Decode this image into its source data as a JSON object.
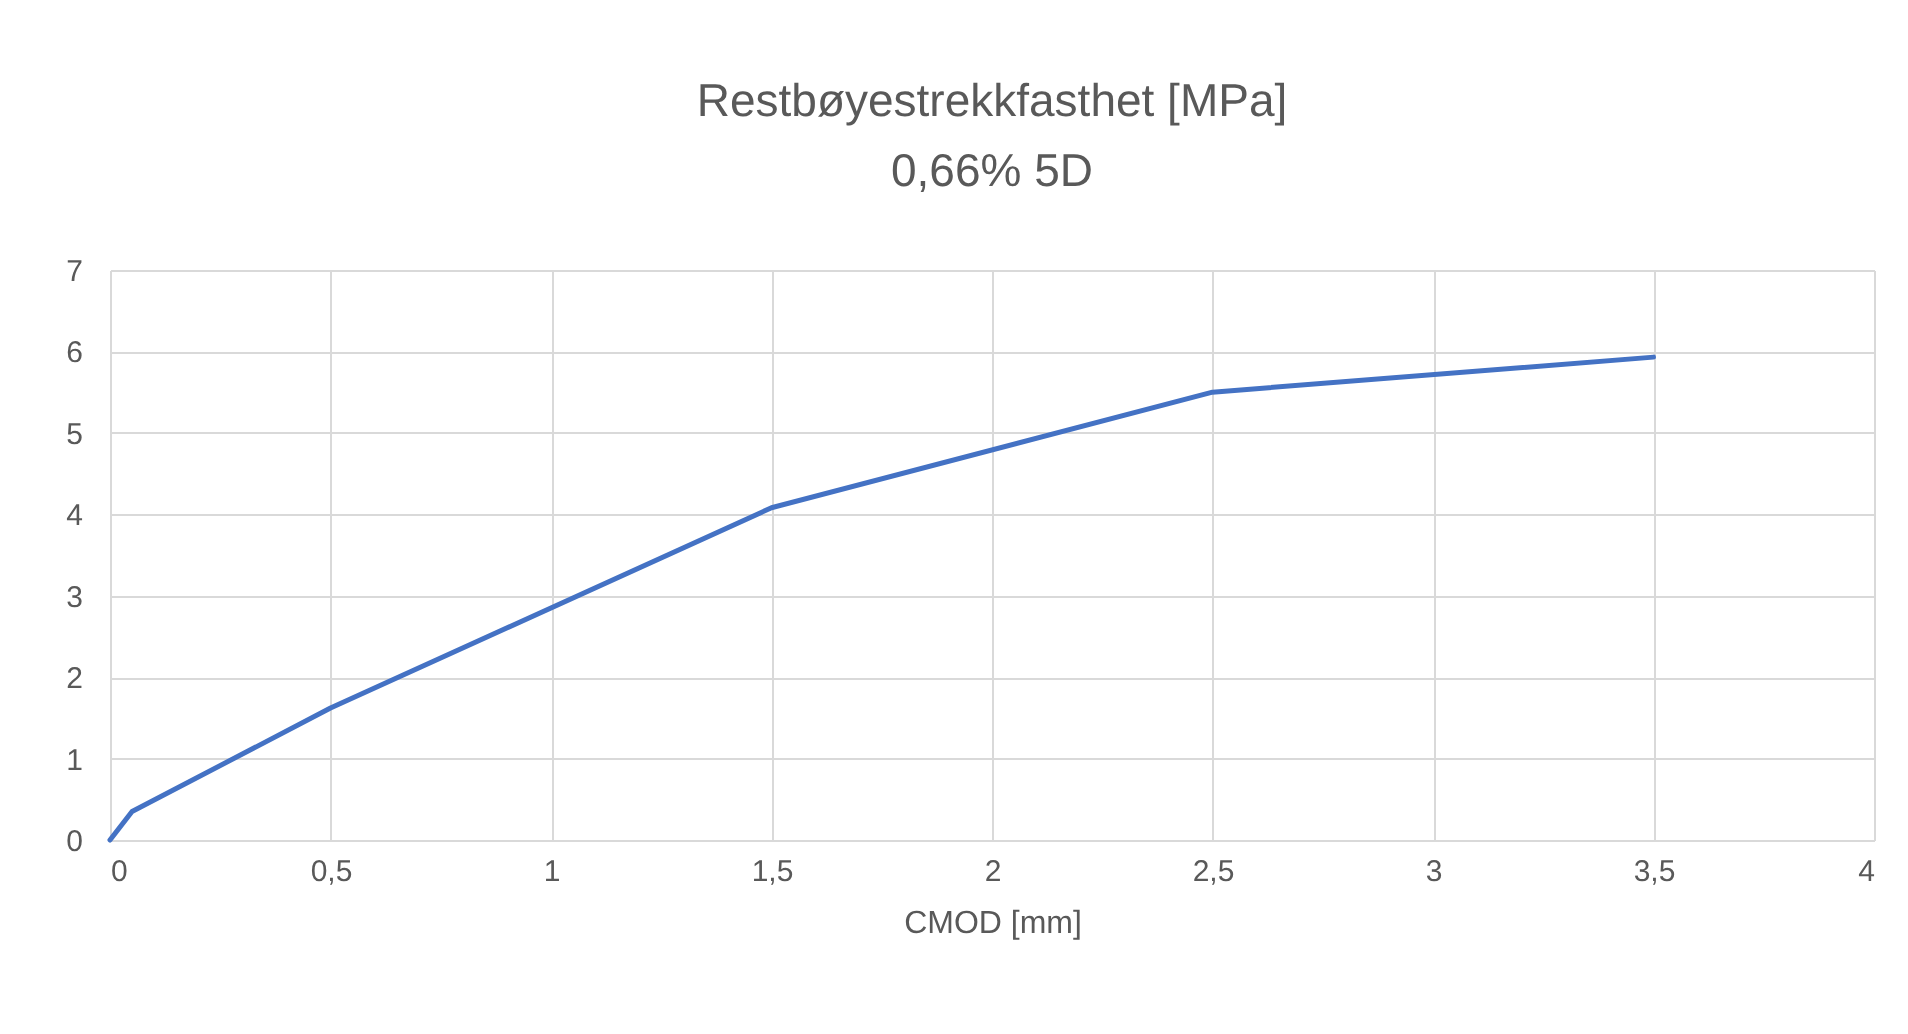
{
  "chart_data": {
    "type": "line",
    "title": "Restbøyestrekkfasthet  [MPa]",
    "subtitle": "0,66% 5D",
    "xlabel": "CMOD [mm]",
    "x": [
      0,
      0.05,
      0.5,
      1.5,
      2.5,
      3.5
    ],
    "series": [
      {
        "color": "#4472c4",
        "values": [
          0,
          0.35,
          1.62,
          4.08,
          5.5,
          5.93
        ]
      }
    ],
    "xlim": [
      0,
      4
    ],
    "xticks": [
      0,
      {
        "value": 0.5,
        "label": "0,5"
      },
      1,
      {
        "value": 1.5,
        "label": "1,5"
      },
      2,
      {
        "value": 2.5,
        "label": "2,5"
      },
      3,
      {
        "value": 3.5,
        "label": "3,5"
      },
      4
    ],
    "ylim": [
      0,
      7
    ],
    "yticks": [
      0,
      1,
      2,
      3,
      4,
      5,
      6,
      7
    ],
    "grid": true
  }
}
